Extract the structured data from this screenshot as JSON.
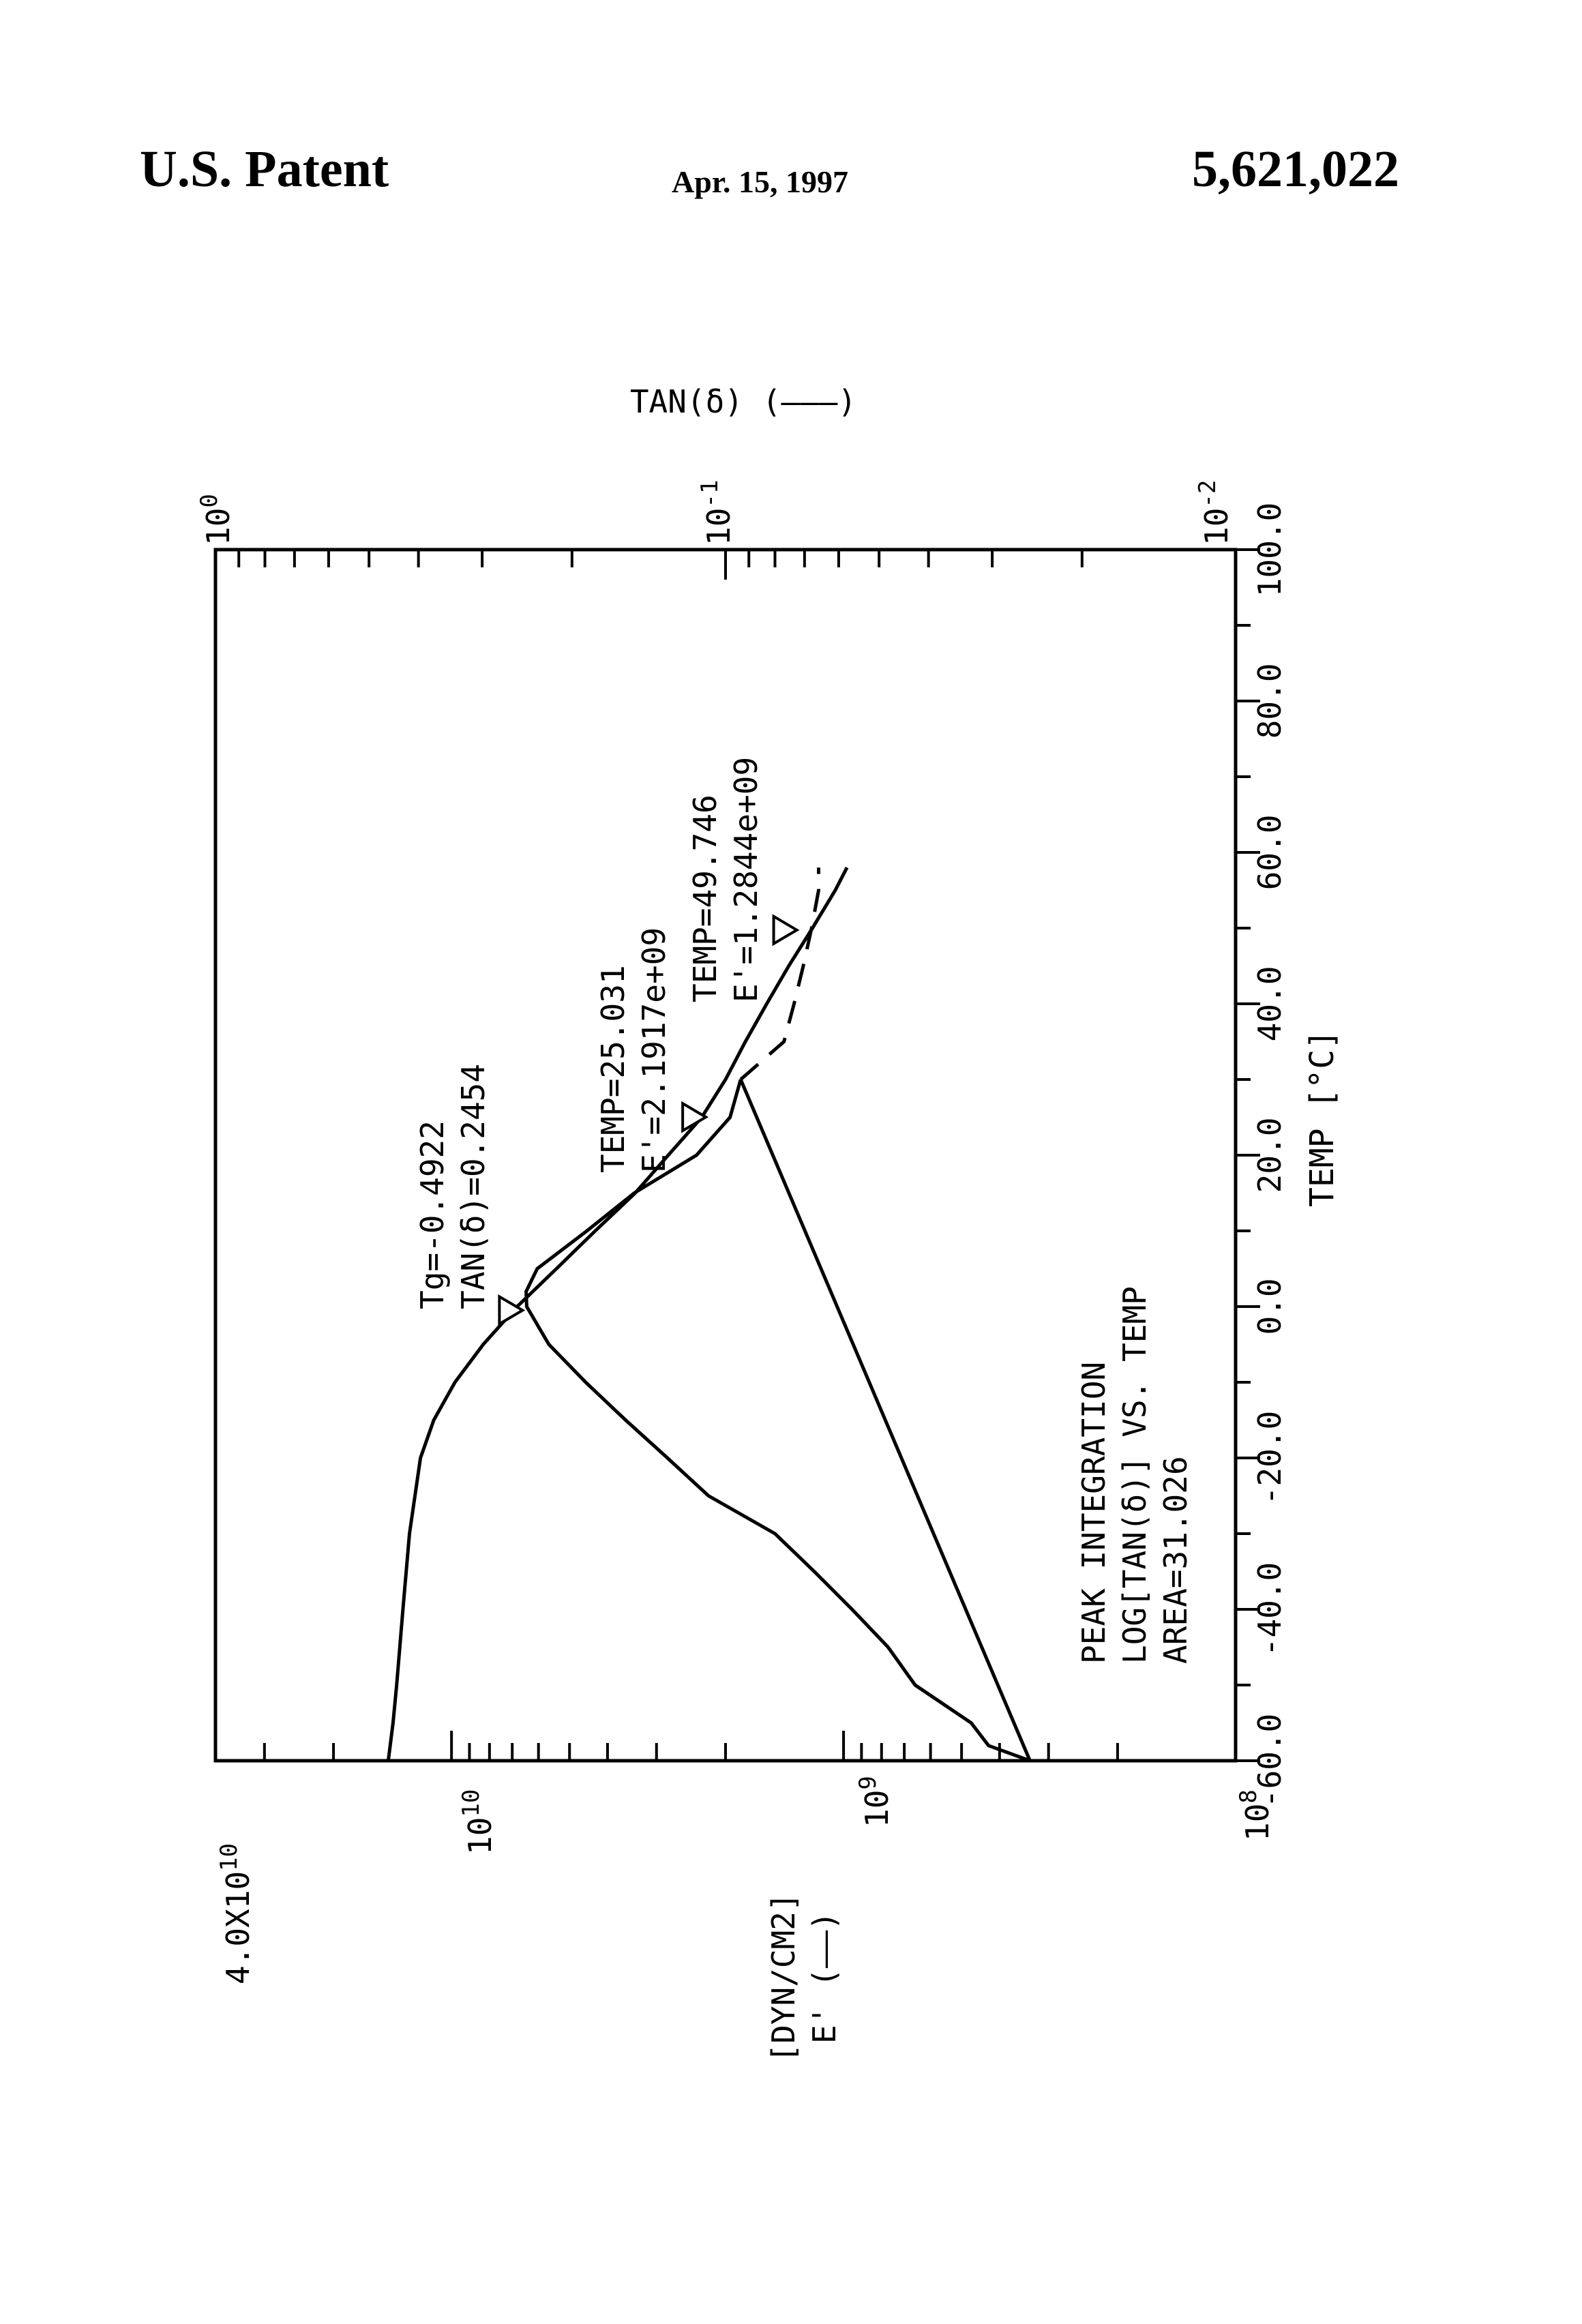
{
  "header": {
    "left": "U.S. Patent",
    "date": "Apr. 15, 1997",
    "patent_number": "5,621,022"
  },
  "chart_data": {
    "type": "line",
    "title": "",
    "xlabel": "TEMP [°C]",
    "xlim": [
      -60.0,
      100.0
    ],
    "x_ticks": [
      "-60.0",
      "-40.0",
      "-20.0",
      "0.0",
      "20.0",
      "40.0",
      "60.0",
      "80.0",
      "100.0"
    ],
    "y_left": {
      "label_line1": "E' (——)",
      "label_line2": "[DYN/CM2]",
      "scale": "log",
      "ylim": [
        100000000,
        40000000000
      ],
      "tick_labels": [
        "10^8",
        "10^9",
        "10^10",
        "4.0X10^10"
      ]
    },
    "y_right": {
      "label": "TAN(δ) (–––)",
      "scale": "log",
      "ylim": [
        0.01,
        1
      ],
      "tick_labels": [
        "10^-2",
        "10^-1",
        "10^0"
      ]
    },
    "series": [
      {
        "name": "E'",
        "style": "solid",
        "axis": "left",
        "x": [
          -60,
          -55,
          -50,
          -40,
          -30,
          -20,
          -15,
          -10,
          -5,
          0,
          5,
          10,
          15,
          20,
          25,
          30,
          35,
          40,
          45,
          50,
          55,
          58
        ],
        "y": [
          14500000000,
          14100000000,
          13800000000,
          13300000000,
          12800000000,
          12000000000,
          11100000000,
          9800000000,
          8300000000,
          6800000000,
          5400000000,
          4300000000,
          3400000000,
          2800000000,
          2300000000,
          2000000000,
          1780000000,
          1570000000,
          1380000000,
          1200000000,
          1050000000,
          980000000
        ]
      },
      {
        "name": "TAN(δ)",
        "style": "solid-then-dashed",
        "axis": "right",
        "x": [
          -60,
          -58,
          -55,
          -50,
          -45,
          -40,
          -35,
          -30,
          -25,
          -20,
          -15,
          -10,
          -5,
          0,
          2,
          5,
          10,
          15,
          20,
          25,
          30,
          35,
          40,
          45,
          50,
          55,
          58
        ],
        "y": [
          0.0253,
          0.0305,
          0.033,
          0.0425,
          0.048,
          0.0565,
          0.067,
          0.08,
          0.108,
          0.13,
          0.157,
          0.188,
          0.222,
          0.2454,
          0.246,
          0.234,
          0.187,
          0.151,
          0.114,
          0.098,
          0.0934,
          0.0768,
          0.0734,
          0.0704,
          0.0678,
          0.0657,
          0.0657
        ]
      },
      {
        "name": "baseline",
        "style": "solid",
        "axis": "right",
        "x": [
          -60,
          30
        ],
        "y": [
          0.0253,
          0.0934
        ]
      }
    ],
    "annotations": [
      {
        "line1": "Tg=-0.4922",
        "line2": "TAN(δ)=0.2454",
        "x": -0.4922
      },
      {
        "line1": "TEMP=25.031",
        "line2": "E'=2.1917e+09",
        "x": 25.031
      },
      {
        "line1": "TEMP=49.746",
        "line2": "E'=1.2844e+09",
        "x": 49.746
      },
      {
        "line1": "PEAK INTEGRATION",
        "line2": "LOG[TAN(δ)] VS. TEMP",
        "line3": "AREA=31.026"
      }
    ],
    "grid": false
  }
}
